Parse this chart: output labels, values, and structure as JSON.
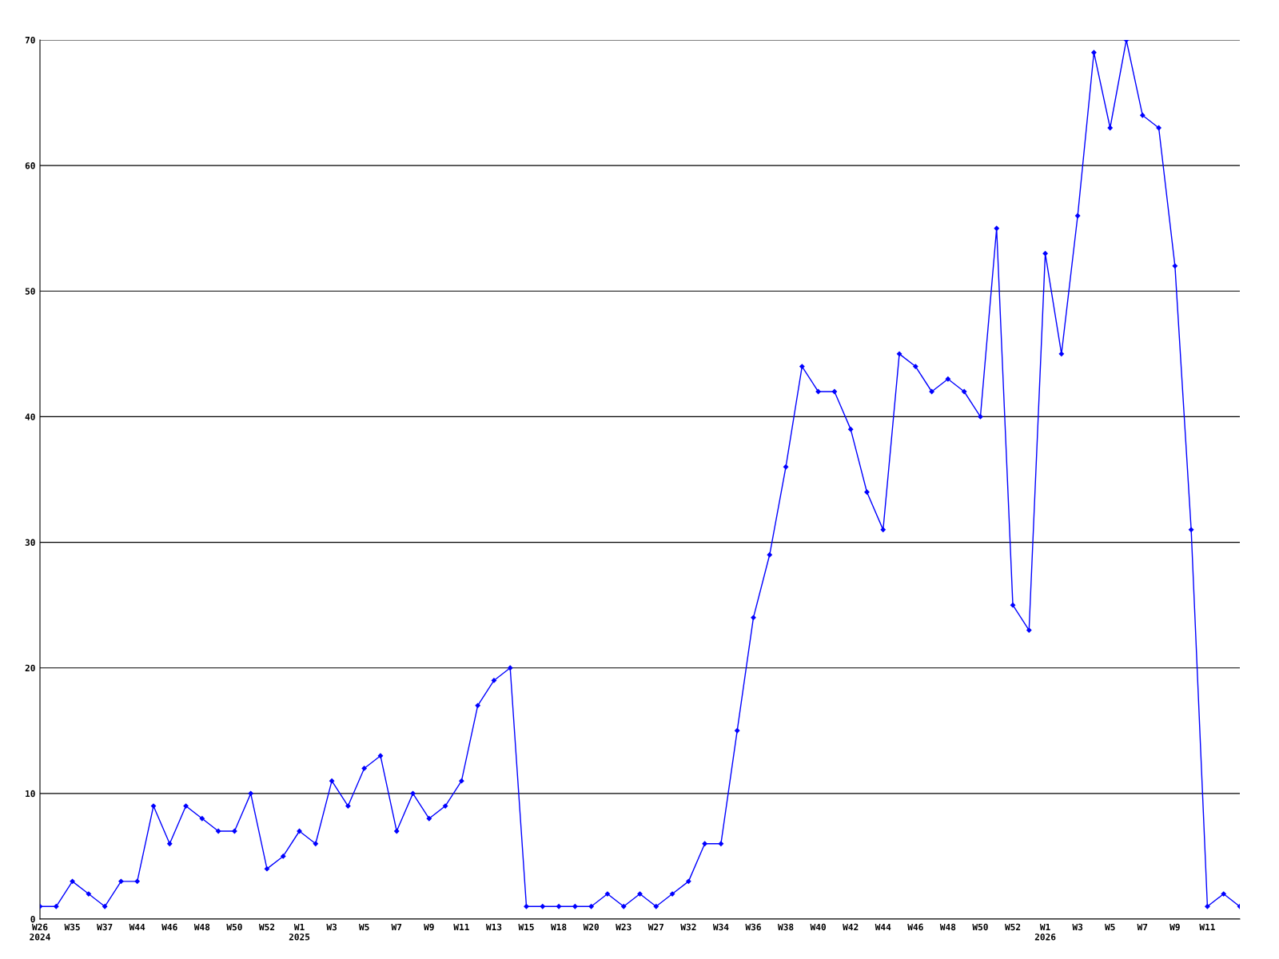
{
  "chart_data": {
    "type": "line",
    "categories": [
      "W26\n2024",
      null,
      "W35",
      null,
      "W37",
      null,
      "W44",
      null,
      "W46",
      null,
      "W48",
      null,
      "W50",
      null,
      "W52",
      null,
      "W1\n2025",
      null,
      "W3",
      null,
      "W5",
      null,
      "W7",
      null,
      "W9",
      null,
      "W11",
      null,
      "W13",
      null,
      "W15",
      null,
      "W18",
      null,
      "W20",
      null,
      "W23",
      null,
      "W27",
      null,
      "W32",
      null,
      "W34",
      null,
      "W36",
      null,
      "W38",
      null,
      "W40",
      null,
      "W42",
      null,
      "W44",
      null,
      "W46",
      null,
      "W48",
      null,
      "W50",
      null,
      "W52",
      null,
      "W1\n2026",
      null,
      "W3",
      null,
      "W5",
      null,
      "W7",
      null,
      "W9",
      null,
      "W11",
      null,
      null
    ],
    "series": [
      {
        "color": "#0000ff",
        "values": [
          1,
          1,
          3,
          2,
          1,
          3,
          3,
          9,
          6,
          9,
          8,
          7,
          7,
          10,
          4,
          5,
          7,
          6,
          11,
          9,
          12,
          13,
          7,
          10,
          8,
          9,
          11,
          17,
          19,
          20,
          1,
          1,
          1,
          1,
          1,
          2,
          1,
          2,
          1,
          2,
          3,
          6,
          6,
          15,
          24,
          29,
          36,
          44,
          42,
          42,
          39,
          34,
          31,
          45,
          44,
          42,
          43,
          42,
          40,
          55,
          25,
          23,
          53,
          45,
          56,
          69,
          63,
          70,
          64,
          63,
          52,
          31,
          1,
          2,
          1
        ]
      }
    ],
    "ylim": [
      0,
      70
    ],
    "yticks": [
      0,
      10,
      20,
      30,
      40,
      50,
      60,
      70
    ],
    "grid": "y",
    "marker": "diamond",
    "line_style": "solid",
    "legend": false
  }
}
